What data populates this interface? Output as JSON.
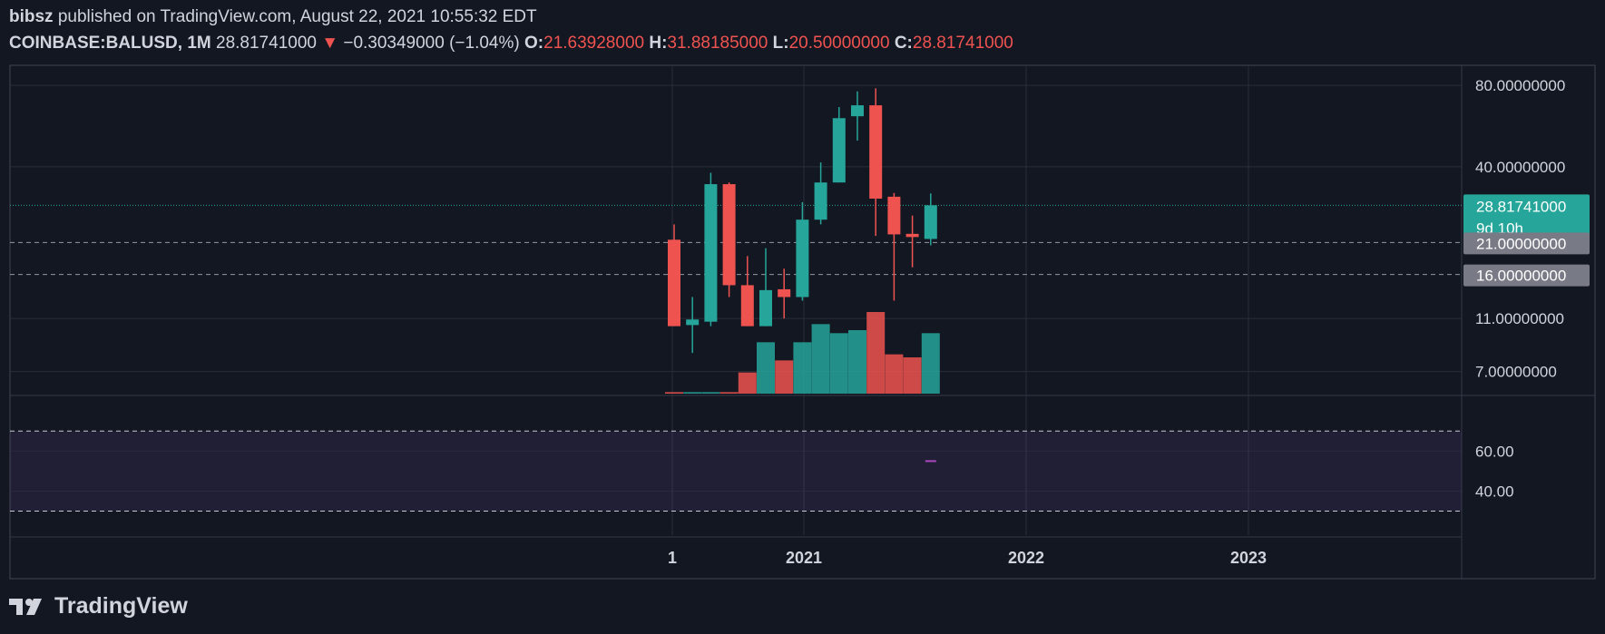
{
  "header": {
    "author": "bibsz",
    "published_text": "published on TradingView.com, August 22, 2021 10:55:32 EDT",
    "symbol": "COINBASE:BALUSD, 1M",
    "last_price": "28.81741000",
    "change": "−0.30349000 (−1.04%)",
    "open_label": "O:",
    "open_value": "21.63928000",
    "high_label": "H:",
    "high_value": "31.88185000",
    "low_label": "L:",
    "low_value": "20.50000000",
    "close_label": "C:",
    "close_value": "28.81741000"
  },
  "footer": {
    "logo_text": "TradingView",
    "logo_icon": "tradingview-logo-icon"
  },
  "colors": {
    "up": "#26a69a",
    "down": "#ef5350",
    "background": "#131722",
    "rsi_band": "#7e57c2",
    "grid": "#2a2e39"
  },
  "price_badges": {
    "last": "28.81741000",
    "countdown": "9d 10h",
    "line1": "21.00000000",
    "line2": "16.00000000"
  },
  "chart_data": [
    {
      "type": "candlestick",
      "scale": "log",
      "x_ticks": [
        "1",
        "2021",
        "2022",
        "2023"
      ],
      "y_ticks": [
        "80.00000000",
        "40.00000000",
        "11.00000000",
        "7.00000000"
      ],
      "ylim": [
        5.8,
        92
      ],
      "horizontal_lines": [
        28.8174,
        21,
        16
      ],
      "months": [
        "2020-06",
        "2020-07",
        "2020-08",
        "2020-09",
        "2020-10",
        "2020-11",
        "2020-12",
        "2021-01",
        "2021-02",
        "2021-03",
        "2021-04",
        "2021-05",
        "2021-06",
        "2021-07",
        "2021-08"
      ],
      "candles": [
        {
          "o": 21.5,
          "h": 24.5,
          "l": 10.3,
          "c": 10.3
        },
        {
          "o": 10.4,
          "h": 13.2,
          "l": 8.2,
          "c": 10.9
        },
        {
          "o": 10.7,
          "h": 38.0,
          "l": 10.3,
          "c": 34.5
        },
        {
          "o": 34.5,
          "h": 35.0,
          "l": 13.2,
          "c": 14.6
        },
        {
          "o": 14.6,
          "h": 18.7,
          "l": 10.3,
          "c": 10.3
        },
        {
          "o": 10.3,
          "h": 20.0,
          "l": 10.3,
          "c": 14.0
        },
        {
          "o": 14.1,
          "h": 16.8,
          "l": 11.0,
          "c": 13.2
        },
        {
          "o": 13.2,
          "h": 29.6,
          "l": 12.8,
          "c": 25.5
        },
        {
          "o": 25.5,
          "h": 41.5,
          "l": 24.5,
          "c": 35.0
        },
        {
          "o": 35.0,
          "h": 66.5,
          "l": 35.0,
          "c": 60.5
        },
        {
          "o": 61.5,
          "h": 76.0,
          "l": 50.0,
          "c": 67.5
        },
        {
          "o": 67.5,
          "h": 78.0,
          "l": 22.2,
          "c": 30.5
        },
        {
          "o": 31.0,
          "h": 32.0,
          "l": 12.8,
          "c": 22.5
        },
        {
          "o": 22.6,
          "h": 26.4,
          "l": 17.0,
          "c": 22.0
        },
        {
          "o": 21.64,
          "h": 31.88,
          "l": 20.5,
          "c": 28.82
        }
      ],
      "volume": [
        0.5,
        0.5,
        0.5,
        0.5,
        7,
        17,
        11,
        17,
        23,
        20,
        21,
        27,
        13,
        12,
        20
      ]
    },
    {
      "type": "line",
      "name": "RSI",
      "y_ticks": [
        "60.00",
        "40.00"
      ],
      "ylim": [
        18,
        86
      ],
      "band": [
        70,
        30
      ],
      "values": [
        55,
        55
      ]
    }
  ]
}
